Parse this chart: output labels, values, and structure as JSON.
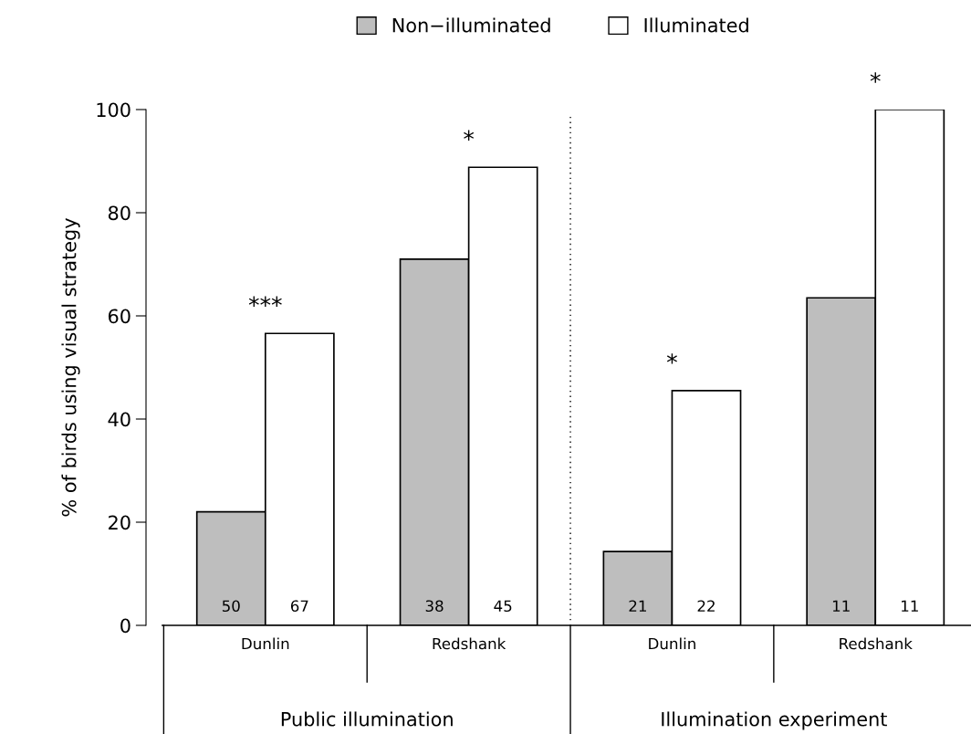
{
  "chart_data": {
    "type": "bar",
    "ylabel": "% of birds using visual strategy",
    "categories": [
      "Dunlin",
      "Redshank",
      "Dunlin",
      "Redshank"
    ],
    "series": [
      {
        "name": "Non−illuminated",
        "color": "#bebebe",
        "values": [
          22,
          71,
          14.3,
          63.5
        ]
      },
      {
        "name": "Illuminated",
        "color": "#ffffff",
        "values": [
          56.6,
          88.8,
          45.5,
          100
        ]
      }
    ],
    "annotations": [
      "***",
      "*",
      "*",
      "*",
      "50",
      "38",
      "21",
      "11",
      "67",
      "45",
      "22",
      "11",
      "Public illumination",
      "Illumination experiment"
    ],
    "ylim": [
      0,
      100
    ],
    "yticks": [
      0,
      20,
      40,
      60,
      80,
      100
    ],
    "grid": false,
    "legend": "top"
  }
}
